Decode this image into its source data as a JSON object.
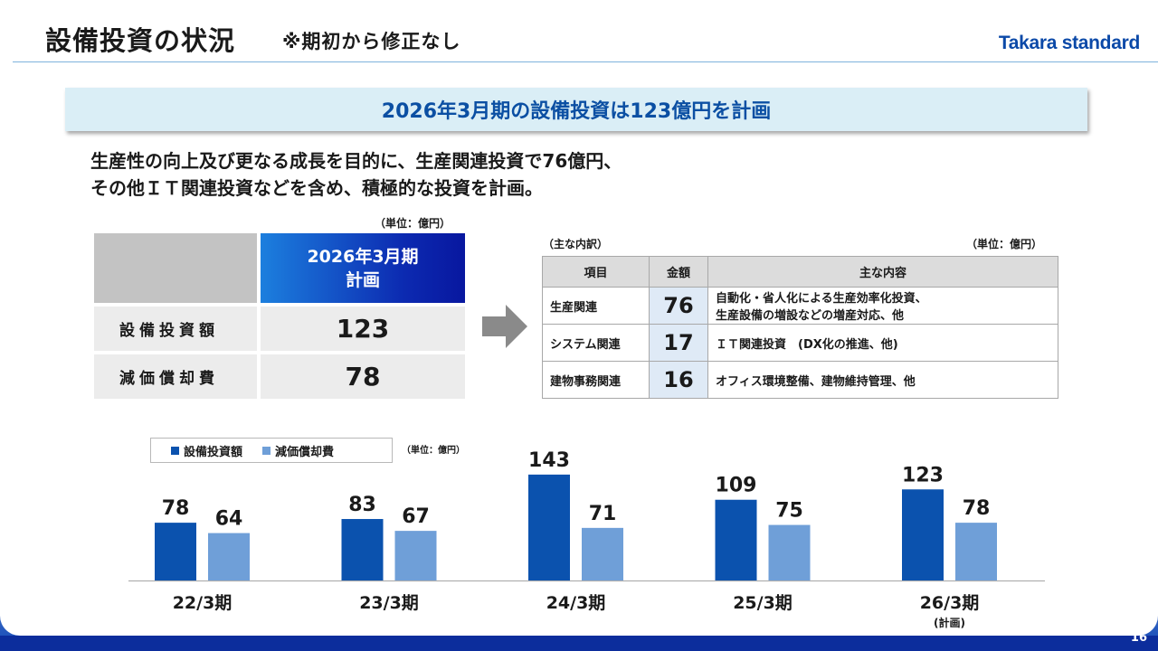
{
  "header": {
    "title": "設備投資の状況",
    "subtitle": "※期初から修正なし",
    "logo": "Takara standard"
  },
  "banner": "2026年3月期の設備投資は123億円を計画",
  "lead": {
    "line1": "生産性の向上及び更なる成長を目的に、生産関連投資で76億円、",
    "line2": "その他ＩＴ関連投資などを含め、積極的な投資を計画。"
  },
  "summary_table": {
    "unit": "（単位：億円）",
    "header_line1": "2026年3月期",
    "header_line2": "計画",
    "rows": [
      {
        "label": "設備投資額",
        "value": "123"
      },
      {
        "label": "減価償却費",
        "value": "78"
      }
    ]
  },
  "breakdown_table": {
    "caption": "（主な内訳）",
    "unit": "（単位：億円）",
    "headers": [
      "項目",
      "金額",
      "主な内容"
    ],
    "rows": [
      {
        "item": "生産関連",
        "amount": "76",
        "content_line1": "自動化・省人化による生産効率化投資、",
        "content_line2": "生産設備の増設などの増産対応、他"
      },
      {
        "item": "システム関連",
        "amount": "17",
        "content_line1": "ＩＴ関連投資　(DX化の推進、他)",
        "content_line2": ""
      },
      {
        "item": "建物事務関連",
        "amount": "16",
        "content_line1": "オフィス環境整備、建物維持管理、他",
        "content_line2": ""
      }
    ]
  },
  "chart_data": {
    "type": "bar",
    "categories": [
      "22/3期",
      "23/3期",
      "24/3期",
      "25/3期",
      "26/3期"
    ],
    "category_notes": [
      "",
      "",
      "",
      "",
      "(計画)"
    ],
    "series": [
      {
        "name": "設備投資額",
        "values": [
          78,
          83,
          143,
          109,
          123
        ],
        "color": "#0b52ae"
      },
      {
        "name": "減価償却費",
        "values": [
          64,
          67,
          71,
          75,
          78
        ],
        "color": "#6f9fd8"
      }
    ],
    "unit": "（単位：億円）",
    "ylim": [
      0,
      160
    ],
    "grid": false,
    "legend": "top-left"
  },
  "page_number": "16"
}
